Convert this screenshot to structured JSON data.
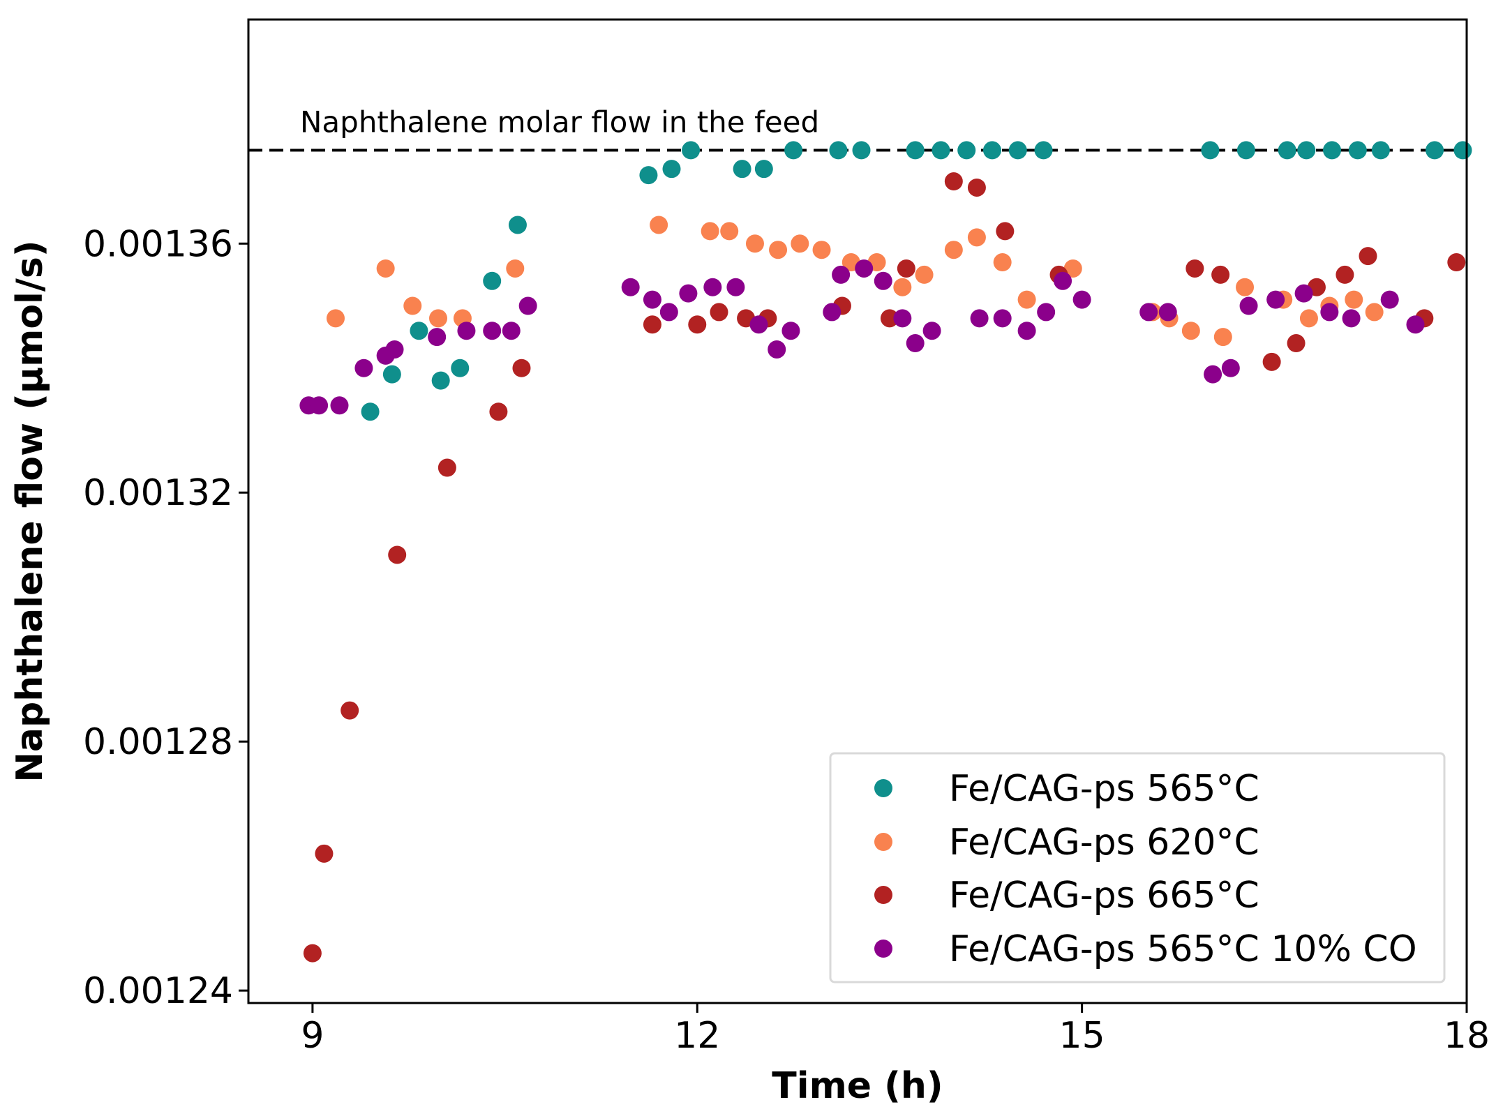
{
  "chart_data": {
    "type": "scatter",
    "title": "",
    "xlabel": "Time (h)",
    "ylabel": "Naphthalene flow (µmol/s)",
    "xlim": [
      8.5,
      18
    ],
    "ylim": [
      0.001238,
      0.001396
    ],
    "xticks": [
      9,
      12,
      15,
      18
    ],
    "xtick_labels": [
      "9",
      "12",
      "15",
      "18"
    ],
    "yticks": [
      0.00124,
      0.00128,
      0.00132,
      0.00136
    ],
    "ytick_labels": [
      "0.00124",
      "0.00128",
      "0.00132",
      "0.00136"
    ],
    "grid": false,
    "legend_position": "lower-right",
    "reference_line": {
      "y": 0.001375,
      "label": "Naphthalene molar flow in the feed",
      "style": "dashed",
      "color": "#000000"
    },
    "series": [
      {
        "name": "Fe/CAG-ps 565°C",
        "color": "#0f8f8c",
        "x": [
          9.45,
          9.62,
          9.83,
          10.0,
          10.15,
          10.4,
          10.6,
          11.62,
          11.8,
          11.95,
          12.35,
          12.52,
          12.75,
          13.1,
          13.28,
          13.7,
          13.9,
          14.1,
          14.3,
          14.5,
          14.7,
          16.0,
          16.28,
          16.6,
          16.75,
          16.95,
          17.15,
          17.33,
          17.75,
          17.97
        ],
        "y": [
          0.001333,
          0.001339,
          0.001346,
          0.001338,
          0.00134,
          0.001354,
          0.001363,
          0.001371,
          0.001372,
          0.001375,
          0.001372,
          0.001372,
          0.001375,
          0.001375,
          0.001375,
          0.001375,
          0.001375,
          0.001375,
          0.001375,
          0.001375,
          0.001375,
          0.001375,
          0.001375,
          0.001375,
          0.001375,
          0.001375,
          0.001375,
          0.001375,
          0.001375,
          0.001375
        ]
      },
      {
        "name": "Fe/CAG-ps 620°C",
        "color": "#f9824f",
        "x": [
          9.18,
          9.57,
          9.78,
          9.98,
          10.17,
          10.58,
          11.7,
          12.1,
          12.25,
          12.45,
          12.63,
          12.8,
          12.97,
          13.2,
          13.4,
          13.6,
          13.77,
          14.0,
          14.18,
          14.38,
          14.57,
          14.93,
          15.55,
          15.68,
          15.85,
          16.1,
          16.27,
          16.57,
          16.77,
          16.93,
          17.12,
          17.28
        ],
        "y": [
          0.001348,
          0.001356,
          0.00135,
          0.001348,
          0.001348,
          0.001356,
          0.001363,
          0.001362,
          0.001362,
          0.00136,
          0.001359,
          0.00136,
          0.001359,
          0.001357,
          0.001357,
          0.001353,
          0.001355,
          0.001359,
          0.001361,
          0.001357,
          0.001351,
          0.001356,
          0.001349,
          0.001348,
          0.001346,
          0.001345,
          0.001353,
          0.001351,
          0.001348,
          0.00135,
          0.001351,
          0.001349
        ]
      },
      {
        "name": "Fe/CAG-ps 665°C",
        "color": "#b22222",
        "x": [
          9.0,
          9.09,
          9.29,
          9.66,
          10.05,
          10.45,
          10.63,
          11.65,
          12.0,
          12.17,
          12.38,
          12.55,
          13.13,
          13.5,
          13.63,
          14.0,
          14.18,
          14.4,
          14.82,
          15.88,
          16.08,
          16.48,
          16.67,
          16.83,
          17.05,
          17.23,
          17.67,
          17.92
        ],
        "y": [
          0.001246,
          0.001262,
          0.001285,
          0.00131,
          0.001324,
          0.001333,
          0.00134,
          0.001347,
          0.001347,
          0.001349,
          0.001348,
          0.001348,
          0.00135,
          0.001348,
          0.001356,
          0.00137,
          0.001369,
          0.001362,
          0.001355,
          0.001356,
          0.001355,
          0.001341,
          0.001344,
          0.001353,
          0.001355,
          0.001358,
          0.001348,
          0.001357
        ]
      },
      {
        "name": "Fe/CAG-ps 565°C 10% CO",
        "color": "#8b008b",
        "x": [
          8.97,
          9.05,
          9.21,
          9.4,
          9.57,
          9.64,
          9.97,
          10.2,
          10.4,
          10.55,
          10.68,
          11.48,
          11.65,
          11.78,
          11.93,
          12.12,
          12.3,
          12.48,
          12.62,
          12.73,
          13.05,
          13.12,
          13.3,
          13.45,
          13.6,
          13.7,
          13.83,
          14.2,
          14.38,
          14.57,
          14.72,
          14.85,
          15.0,
          15.52,
          15.67,
          16.02,
          16.16,
          16.3,
          16.51,
          16.73,
          16.93,
          17.1,
          17.4,
          17.6
        ],
        "y": [
          0.001334,
          0.001334,
          0.001334,
          0.00134,
          0.001342,
          0.001343,
          0.001345,
          0.001346,
          0.001346,
          0.001346,
          0.00135,
          0.001353,
          0.001351,
          0.001349,
          0.001352,
          0.001353,
          0.001353,
          0.001347,
          0.001343,
          0.001346,
          0.001349,
          0.001355,
          0.001356,
          0.001354,
          0.001348,
          0.001344,
          0.001346,
          0.001348,
          0.001348,
          0.001346,
          0.001349,
          0.001354,
          0.001351,
          0.001349,
          0.001349,
          0.001339,
          0.00134,
          0.00135,
          0.001351,
          0.001352,
          0.001349,
          0.001348,
          0.001351,
          0.001347
        ]
      }
    ]
  }
}
